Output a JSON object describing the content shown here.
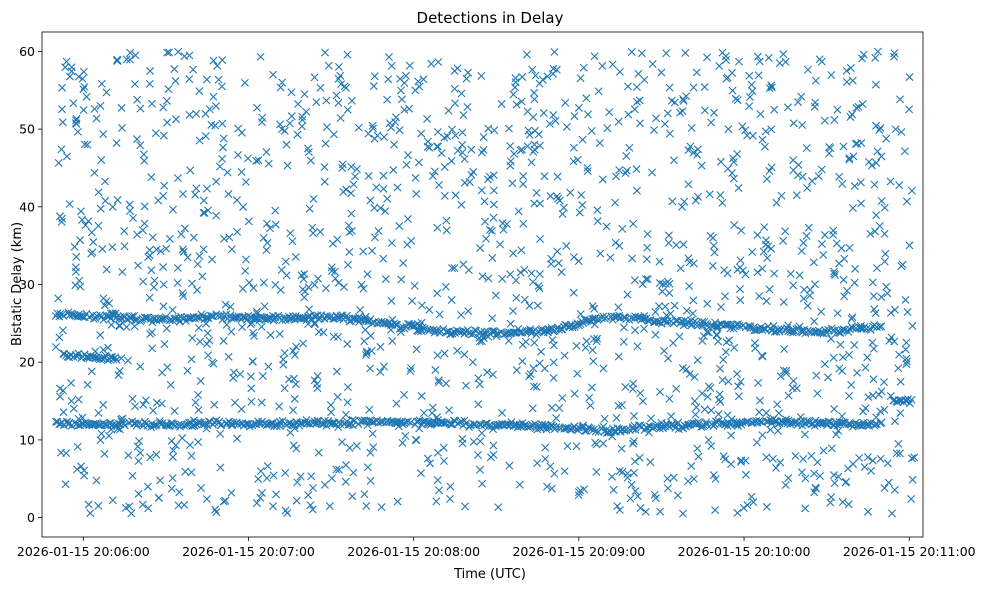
{
  "chart_data": {
    "type": "scatter",
    "title": "Detections in Delay",
    "xlabel": "Time (UTC)",
    "ylabel": "Bistatic Delay (km)",
    "x_axis_type": "time",
    "xlim": [
      "2026-01-15 20:05:45",
      "2026-01-15 20:11:05"
    ],
    "ylim": [
      -2.5,
      62.5
    ],
    "x_ticks": [
      "2026-01-15 20:06:00",
      "2026-01-15 20:07:00",
      "2026-01-15 20:08:00",
      "2026-01-15 20:09:00",
      "2026-01-15 20:10:00",
      "2026-01-15 20:11:00"
    ],
    "y_ticks": [
      0,
      10,
      20,
      30,
      40,
      50,
      60
    ],
    "grid": false,
    "legend": "none",
    "marker": "x",
    "color": "#1f77b4",
    "series": [
      {
        "tracks": [
          {
            "time": [
              "2026-01-15 20:05:50",
              "2026-01-15 20:06:10",
              "2026-01-15 20:06:30",
              "2026-01-15 20:06:50",
              "2026-01-15 20:07:10",
              "2026-01-15 20:07:30",
              "2026-01-15 20:07:50",
              "2026-01-15 20:08:10",
              "2026-01-15 20:08:30",
              "2026-01-15 20:08:50",
              "2026-01-15 20:09:10",
              "2026-01-15 20:09:30",
              "2026-01-15 20:09:50",
              "2026-01-15 20:10:10",
              "2026-01-15 20:10:30",
              "2026-01-15 20:10:50"
            ],
            "delay": [
              12.1,
              12.0,
              11.9,
              12.1,
              12.0,
              12.2,
              12.3,
              12.2,
              12.0,
              11.7,
              11.2,
              11.8,
              12.1,
              12.3,
              12.1,
              12.0
            ]
          },
          {
            "time": [
              "2026-01-15 20:05:50",
              "2026-01-15 20:06:10",
              "2026-01-15 20:06:30",
              "2026-01-15 20:06:50",
              "2026-01-15 20:07:10",
              "2026-01-15 20:07:30",
              "2026-01-15 20:07:50",
              "2026-01-15 20:08:10",
              "2026-01-15 20:08:30",
              "2026-01-15 20:08:50",
              "2026-01-15 20:09:10",
              "2026-01-15 20:09:30",
              "2026-01-15 20:09:50",
              "2026-01-15 20:10:10",
              "2026-01-15 20:10:30",
              "2026-01-15 20:10:50"
            ],
            "delay": [
              26.2,
              25.8,
              25.5,
              25.9,
              25.6,
              25.8,
              25.0,
              24.0,
              23.6,
              24.1,
              25.9,
              25.3,
              24.8,
              24.2,
              23.9,
              24.6
            ]
          },
          {
            "time": [
              "2026-01-15 20:05:52",
              "2026-01-15 20:06:02",
              "2026-01-15 20:06:12"
            ],
            "delay": [
              21.0,
              20.6,
              20.4
            ]
          },
          {
            "time": [
              "2026-01-15 20:10:54",
              "2026-01-15 20:11:01"
            ],
            "delay": [
              15.1,
              15.0
            ]
          }
        ],
        "clutter": {
          "time_range": [
            "2026-01-15 20:05:50",
            "2026-01-15 20:11:02"
          ],
          "delay_range": [
            0.5,
            60
          ],
          "approx_count": 1600
        }
      }
    ]
  }
}
